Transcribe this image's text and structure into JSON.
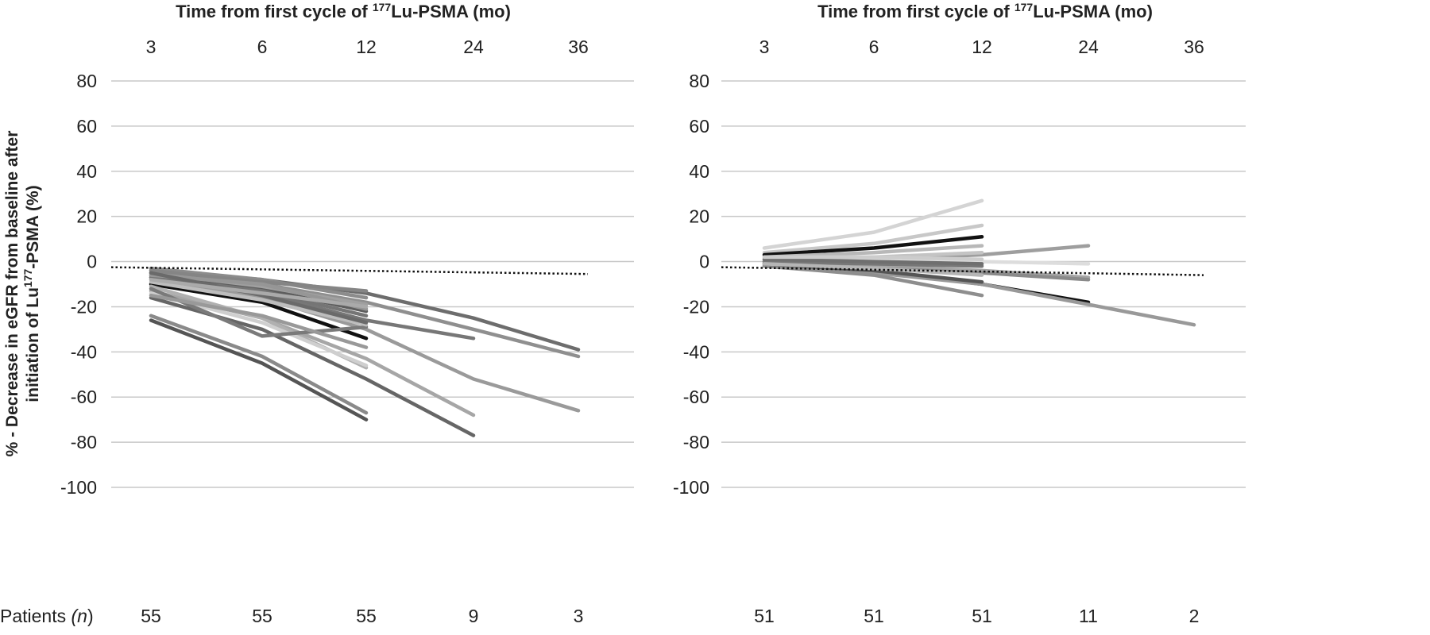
{
  "chart_data": [
    {
      "type": "line",
      "panel": "left",
      "title_prefix": "Time from first cycle of ",
      "title_sup": "177",
      "title_suffix": "Lu-PSMA (mo)",
      "ylabel_line1": "% - Decrease in eGFR from baseline after",
      "ylabel_line2_prefix": "initiation of Lu",
      "ylabel_line2_sup": "177",
      "ylabel_line2_suffix": "-PSMA (%)",
      "categories": [
        "3",
        "6",
        "12",
        "24",
        "36"
      ],
      "yticks": [
        "80",
        "60",
        "40",
        "20",
        "0",
        "-20",
        "-40",
        "-60",
        "-80",
        "-100"
      ],
      "ylim": [
        -100,
        80
      ],
      "patients_label": "Patients",
      "patients_n": "(n)",
      "patients": [
        "55",
        "55",
        "55",
        "9",
        "3"
      ],
      "reference_line": [
        -2.5,
        -5.5
      ],
      "grid": true,
      "series": [
        {
          "color": "#555555",
          "values": [
            -26,
            -45,
            -70,
            null,
            null
          ]
        },
        {
          "color": "#8a8a8a",
          "values": [
            -24,
            -42,
            -67,
            null,
            null
          ]
        },
        {
          "color": "#666666",
          "values": [
            -16,
            -30,
            -52,
            -77,
            null
          ]
        },
        {
          "color": "#a6a6a6",
          "values": [
            -13,
            -25,
            -43,
            -68,
            null
          ]
        },
        {
          "color": "#111111",
          "values": [
            -10,
            -18,
            -34,
            null,
            null
          ]
        },
        {
          "color": "#777777",
          "values": [
            -7,
            -14,
            -26,
            -34,
            null
          ]
        },
        {
          "color": "#9a9a9a",
          "values": [
            -8,
            -16,
            -30,
            -52,
            -66
          ]
        },
        {
          "color": "#6d6d6d",
          "values": [
            -4,
            -8,
            -14,
            -25,
            -39
          ]
        },
        {
          "color": "#8f8f8f",
          "values": [
            -5,
            -10,
            -18,
            -30,
            -42
          ]
        },
        {
          "color": "#b0b0b0",
          "values": [
            -11,
            -25,
            -47,
            null,
            null
          ]
        },
        {
          "color": "#cfcfcf",
          "values": [
            -14,
            -27,
            -46,
            null,
            null
          ]
        },
        {
          "color": "#7a7a7a",
          "values": [
            -12,
            -33,
            -29,
            null,
            null
          ]
        },
        {
          "color": "#999999",
          "values": [
            -15,
            -24,
            -38,
            null,
            null
          ]
        },
        {
          "color": "#5e5e5e",
          "values": [
            -6,
            -12,
            -22,
            null,
            null
          ]
        },
        {
          "color": "#8c8c8c",
          "values": [
            -3,
            -8,
            -16,
            null,
            null
          ]
        },
        {
          "color": "#a0a0a0",
          "values": [
            -5,
            -11,
            -19,
            null,
            null
          ]
        },
        {
          "color": "#757575",
          "values": [
            -7,
            -13,
            -24,
            null,
            null
          ]
        },
        {
          "color": "#bdbdbd",
          "values": [
            -9,
            -17,
            -28,
            null,
            null
          ]
        },
        {
          "color": "#858585",
          "values": [
            -4,
            -9,
            -13,
            null,
            null
          ]
        },
        {
          "color": "#969696",
          "values": [
            -6,
            -10,
            -21,
            null,
            null
          ]
        },
        {
          "color": "#6a6a6a",
          "values": [
            -5,
            -15,
            -27,
            null,
            null
          ]
        },
        {
          "color": "#aaaaaa",
          "values": [
            -8,
            -14,
            -20,
            null,
            null
          ]
        }
      ]
    },
    {
      "type": "line",
      "panel": "right",
      "title_prefix": "Time from first cycle of ",
      "title_sup": "177",
      "title_suffix": "Lu-PSMA (mo)",
      "categories": [
        "3",
        "6",
        "12",
        "24",
        "36"
      ],
      "yticks": [
        "80",
        "60",
        "40",
        "20",
        "0",
        "-20",
        "-40",
        "-60",
        "-80",
        "-100"
      ],
      "ylim": [
        -100,
        80
      ],
      "patients": [
        "51",
        "51",
        "51",
        "11",
        "2"
      ],
      "reference_line": [
        -2.5,
        -6
      ],
      "grid": true,
      "series": [
        {
          "color": "#d4d4d4",
          "values": [
            6,
            13,
            27,
            null,
            null
          ]
        },
        {
          "color": "#c8c8c8",
          "values": [
            4,
            8,
            16,
            null,
            null
          ]
        },
        {
          "color": "#111111",
          "values": [
            3,
            6,
            11,
            null,
            null
          ]
        },
        {
          "color": "#b8b8b8",
          "values": [
            2,
            4,
            7,
            null,
            null
          ]
        },
        {
          "color": "#9e9e9e",
          "values": [
            0,
            1,
            3,
            7,
            null
          ]
        },
        {
          "color": "#dddddd",
          "values": [
            1,
            1,
            0,
            -1,
            null
          ]
        },
        {
          "color": "#a5a5a5",
          "values": [
            0,
            -2,
            -4,
            -7,
            null
          ]
        },
        {
          "color": "#8a8a8a",
          "values": [
            -1,
            -3,
            -5,
            -8,
            null
          ]
        },
        {
          "color": "#111111",
          "values": [
            -1,
            -4,
            -10,
            -18,
            null
          ]
        },
        {
          "color": "#999999",
          "values": [
            -2,
            -5,
            -10,
            -19,
            -28
          ]
        },
        {
          "color": "#8e8e8e",
          "values": [
            -2,
            -6,
            -15,
            null,
            null
          ]
        },
        {
          "color": "#555555",
          "values": [
            -1,
            -4,
            -9,
            null,
            null
          ]
        },
        {
          "color": "#c4c4c4",
          "values": [
            1,
            2,
            4,
            null,
            null
          ]
        },
        {
          "color": "#777777",
          "values": [
            0,
            -1,
            -2,
            null,
            null
          ]
        },
        {
          "color": "#b5b5b5",
          "values": [
            -1,
            -3,
            -6,
            null,
            null
          ]
        },
        {
          "color": "#6f6f6f",
          "values": [
            1,
            0,
            -1,
            null,
            null
          ]
        },
        {
          "color": "#cccccc",
          "values": [
            2,
            2,
            1,
            null,
            null
          ]
        }
      ]
    }
  ]
}
